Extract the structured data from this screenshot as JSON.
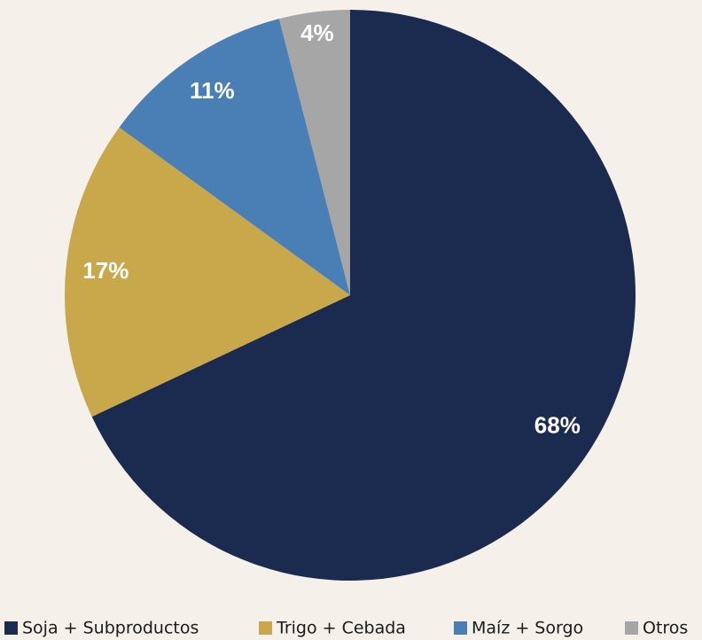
{
  "chart_data": {
    "type": "pie",
    "categories": [
      "Soja + Subproductos",
      "Trigo + Cebada",
      "Maíz + Sorgo",
      "Otros"
    ],
    "values": [
      68,
      17,
      11,
      4
    ],
    "value_labels": [
      "68%",
      "17%",
      "11%",
      "4%"
    ],
    "colors": [
      "#1b2b4f",
      "#c9a84c",
      "#4a7fb6",
      "#a6a6a6"
    ],
    "legend": "bottom"
  }
}
